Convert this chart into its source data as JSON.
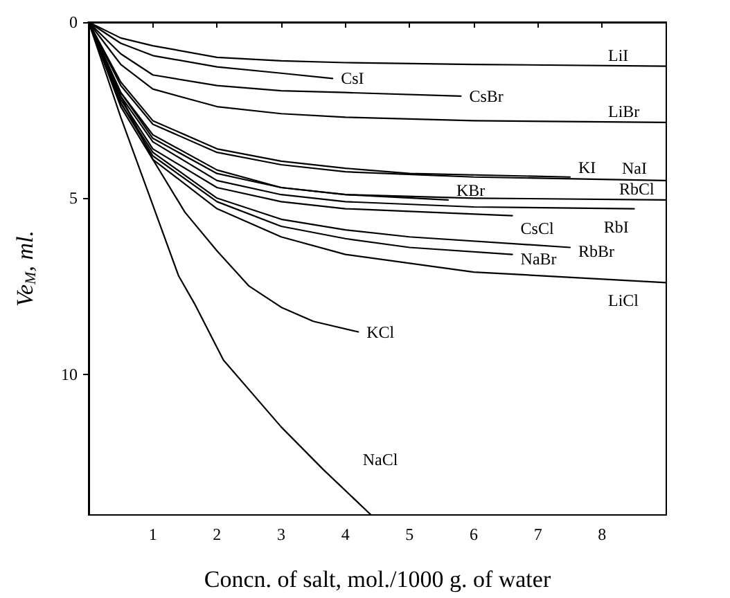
{
  "chart_data": {
    "type": "line",
    "xlabel": "Concn. of salt, mol./1000 g. of water",
    "ylabel": "Ve$_{M}$, ml.",
    "xlim": [
      0,
      9
    ],
    "xticks": [
      1,
      2,
      3,
      4,
      5,
      6,
      7,
      8
    ],
    "ylim": [
      14,
      0
    ],
    "yticks": [
      0,
      5,
      10
    ],
    "grid": false,
    "marker": "none",
    "line_style": "solid",
    "series": [
      {
        "name": "LiI",
        "color": "#000000",
        "x": [
          0,
          0.5,
          1,
          2,
          3,
          4,
          6,
          9
        ],
        "values": [
          0,
          0.45,
          0.67,
          1.0,
          1.1,
          1.15,
          1.2,
          1.25
        ]
      },
      {
        "name": "CsI",
        "color": "#000000",
        "x": [
          0,
          0.5,
          1,
          2,
          3,
          3.8
        ],
        "values": [
          0,
          0.6,
          0.95,
          1.27,
          1.45,
          1.6
        ]
      },
      {
        "name": "CsBr",
        "color": "#000000",
        "x": [
          0,
          0.5,
          1,
          2,
          3,
          4,
          5.8
        ],
        "values": [
          0,
          0.9,
          1.5,
          1.8,
          1.95,
          2.0,
          2.1
        ]
      },
      {
        "name": "LiBr",
        "color": "#000000",
        "x": [
          0,
          0.5,
          1,
          2,
          3,
          4,
          6,
          9
        ],
        "values": [
          0,
          1.2,
          1.9,
          2.4,
          2.6,
          2.7,
          2.8,
          2.85
        ]
      },
      {
        "name": "KI",
        "color": "#000000",
        "x": [
          0,
          0.5,
          1,
          2,
          3,
          4,
          5,
          7.5
        ],
        "values": [
          0,
          1.7,
          2.8,
          3.6,
          3.95,
          4.15,
          4.3,
          4.4
        ]
      },
      {
        "name": "NaI",
        "color": "#000000",
        "x": [
          0,
          0.5,
          1,
          2,
          3,
          4,
          6,
          9
        ],
        "values": [
          0,
          1.8,
          2.9,
          3.7,
          4.05,
          4.25,
          4.4,
          4.5
        ]
      },
      {
        "name": "KBr",
        "color": "#000000",
        "x": [
          0,
          0.5,
          1,
          2,
          3,
          4,
          5.6
        ],
        "values": [
          0,
          2.0,
          3.2,
          4.2,
          4.7,
          4.9,
          5.05
        ]
      },
      {
        "name": "RbCl",
        "color": "#000000",
        "x": [
          0,
          0.5,
          1,
          2,
          3,
          4,
          6,
          9
        ],
        "values": [
          0,
          2.0,
          3.3,
          4.3,
          4.7,
          4.9,
          5.0,
          5.05
        ]
      },
      {
        "name": "RbI",
        "color": "#000000",
        "x": [
          0,
          0.5,
          1,
          2,
          3,
          4,
          6,
          8.5
        ],
        "values": [
          0,
          2.1,
          3.4,
          4.5,
          4.9,
          5.1,
          5.25,
          5.3
        ]
      },
      {
        "name": "CsCl",
        "color": "#000000",
        "x": [
          0,
          0.5,
          1,
          2,
          3,
          4,
          6.6
        ],
        "values": [
          0,
          2.2,
          3.6,
          4.7,
          5.1,
          5.3,
          5.5
        ]
      },
      {
        "name": "RbBr",
        "color": "#000000",
        "x": [
          0,
          0.5,
          1,
          2,
          3,
          4,
          5,
          7.5
        ],
        "values": [
          0,
          2.3,
          3.7,
          5.0,
          5.6,
          5.9,
          6.1,
          6.4
        ]
      },
      {
        "name": "NaBr",
        "color": "#000000",
        "x": [
          0,
          0.5,
          1,
          2,
          3,
          4,
          5,
          6.6
        ],
        "values": [
          0,
          2.3,
          3.8,
          5.1,
          5.8,
          6.15,
          6.4,
          6.6
        ]
      },
      {
        "name": "LiCl",
        "color": "#000000",
        "x": [
          0,
          0.5,
          1,
          2,
          3,
          4,
          6,
          9
        ],
        "values": [
          0,
          2.4,
          3.9,
          5.3,
          6.1,
          6.6,
          7.1,
          7.4
        ]
      },
      {
        "name": "KCl",
        "color": "#000000",
        "x": [
          0,
          0.5,
          1,
          1.5,
          2,
          2.5,
          3,
          3.5,
          4.2
        ],
        "values": [
          0,
          2.1,
          3.9,
          5.4,
          6.5,
          7.5,
          8.1,
          8.5,
          8.8
        ]
      },
      {
        "name": "NaCl",
        "color": "#000000",
        "x": [
          0,
          0.5,
          1,
          1.4,
          1.65,
          2.1,
          3,
          3.65,
          4.4
        ],
        "values": [
          0,
          2.7,
          5.2,
          7.2,
          8.0,
          9.6,
          11.5,
          12.7,
          14
        ]
      }
    ]
  }
}
